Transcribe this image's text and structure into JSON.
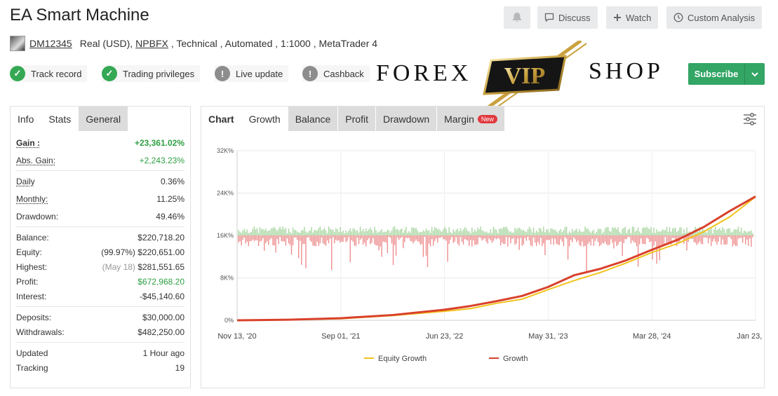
{
  "header": {
    "title": "EA Smart Machine",
    "discuss_label": "Discuss",
    "watch_label": "Watch",
    "custom_label": "Custom Analysis"
  },
  "meta": {
    "account_id": "DM12345",
    "type": "Real (USD),",
    "broker": "NPBFX",
    "rest": ", Technical , Automated , 1:1000 , MetaTrader 4"
  },
  "badges": {
    "track_record": "Track record",
    "trading_privileges": "Trading privileges",
    "live_update": "Live update",
    "cashback": "Cashback"
  },
  "logo": {
    "left": "FOREX",
    "center": "VIP",
    "right": "SHOP"
  },
  "subscribe_label": "Subscribe",
  "left_tabs": [
    "Info",
    "Stats",
    "General"
  ],
  "stats": {
    "gain_label": "Gain :",
    "gain": "+23,361.02%",
    "abs_gain_label": "Abs. Gain:",
    "abs_gain": "+2,243.23%",
    "daily_label": "Daily",
    "daily": "0.36%",
    "monthly_label": "Monthly:",
    "monthly": "11.25%",
    "drawdown_label": "Drawdown:",
    "drawdown": "49.46%",
    "balance_label": "Balance:",
    "balance": "$220,718.20",
    "equity_label": "Equity:",
    "equity_pct": "(99.97%)",
    "equity": "$220,651.00",
    "highest_label": "Highest:",
    "highest_date": "(May 18)",
    "highest": "$281,551.65",
    "profit_label": "Profit:",
    "profit": "$672,968.20",
    "interest_label": "Interest:",
    "interest": "-$45,140.60",
    "deposits_label": "Deposits:",
    "deposits": "$30,000.00",
    "withdrawals_label": "Withdrawals:",
    "withdrawals": "$482,250.00",
    "updated_label": "Updated",
    "updated": "1 Hour ago",
    "tracking_label": "Tracking",
    "tracking": "19"
  },
  "chart_tabs": {
    "chart": "Chart",
    "growth": "Growth",
    "balance": "Balance",
    "profit": "Profit",
    "drawdown": "Drawdown",
    "margin": "Margin",
    "new": "New"
  },
  "colors": {
    "growth": "#d9412b",
    "equity": "#f2c21b",
    "pos_bar": "#a9d6a1",
    "neg_bar": "#ee8e8e",
    "subscribe": "#33a565"
  },
  "chart_data": {
    "type": "line",
    "y_ticks": [
      "0%",
      "8K%",
      "16K%",
      "24K%",
      "32K%"
    ],
    "ylim": [
      0,
      32000
    ],
    "x_ticks": [
      "Nov 13, '20",
      "Sep 01, '21",
      "Jun 23, '22",
      "May 31, '23",
      "Mar 28, '24",
      "Jan 23, '25"
    ],
    "xlim": [
      0,
      1
    ],
    "grid": true,
    "legend_position": "bottom",
    "series": [
      {
        "name": "Equity Growth",
        "x": [
          0,
          0.1,
          0.2,
          0.3,
          0.4,
          0.45,
          0.5,
          0.55,
          0.6,
          0.65,
          0.7,
          0.75,
          0.8,
          0.85,
          0.9,
          0.95,
          1.0
        ],
        "values": [
          0,
          100,
          300,
          900,
          1700,
          2200,
          3200,
          4000,
          5800,
          7500,
          9000,
          10800,
          12800,
          14500,
          16700,
          19500,
          23300
        ]
      },
      {
        "name": "Growth",
        "x": [
          0,
          0.1,
          0.2,
          0.3,
          0.4,
          0.45,
          0.5,
          0.55,
          0.6,
          0.65,
          0.7,
          0.75,
          0.8,
          0.85,
          0.9,
          0.95,
          1.0
        ],
        "values": [
          0,
          120,
          400,
          1000,
          2000,
          2700,
          3600,
          4600,
          6300,
          8500,
          9700,
          11300,
          13300,
          15200,
          17600,
          20600,
          23361
        ]
      }
    ]
  }
}
